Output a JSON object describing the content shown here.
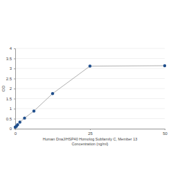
{
  "chart_data": {
    "type": "line",
    "x_label": [
      "Human DnaJ/HSP40 Homolog Subfamily C, Member 13",
      "Concentration (ng/ml)"
    ],
    "y_label": "OD",
    "x": [
      0,
      0.39,
      0.78,
      1.56,
      3.12,
      6.25,
      12.5,
      25,
      50
    ],
    "values": [
      0.08,
      0.12,
      0.2,
      0.33,
      0.53,
      0.88,
      1.75,
      3.12,
      3.14
    ],
    "color": "#1f4e8c",
    "marker": "circle",
    "xlim": [
      0,
      50
    ],
    "xticks": [
      0,
      25,
      50
    ],
    "ylim": [
      0,
      4
    ],
    "yticks": [
      0,
      0.5,
      1,
      1.5,
      2,
      2.5,
      3,
      3.5,
      4
    ],
    "grid": true
  }
}
